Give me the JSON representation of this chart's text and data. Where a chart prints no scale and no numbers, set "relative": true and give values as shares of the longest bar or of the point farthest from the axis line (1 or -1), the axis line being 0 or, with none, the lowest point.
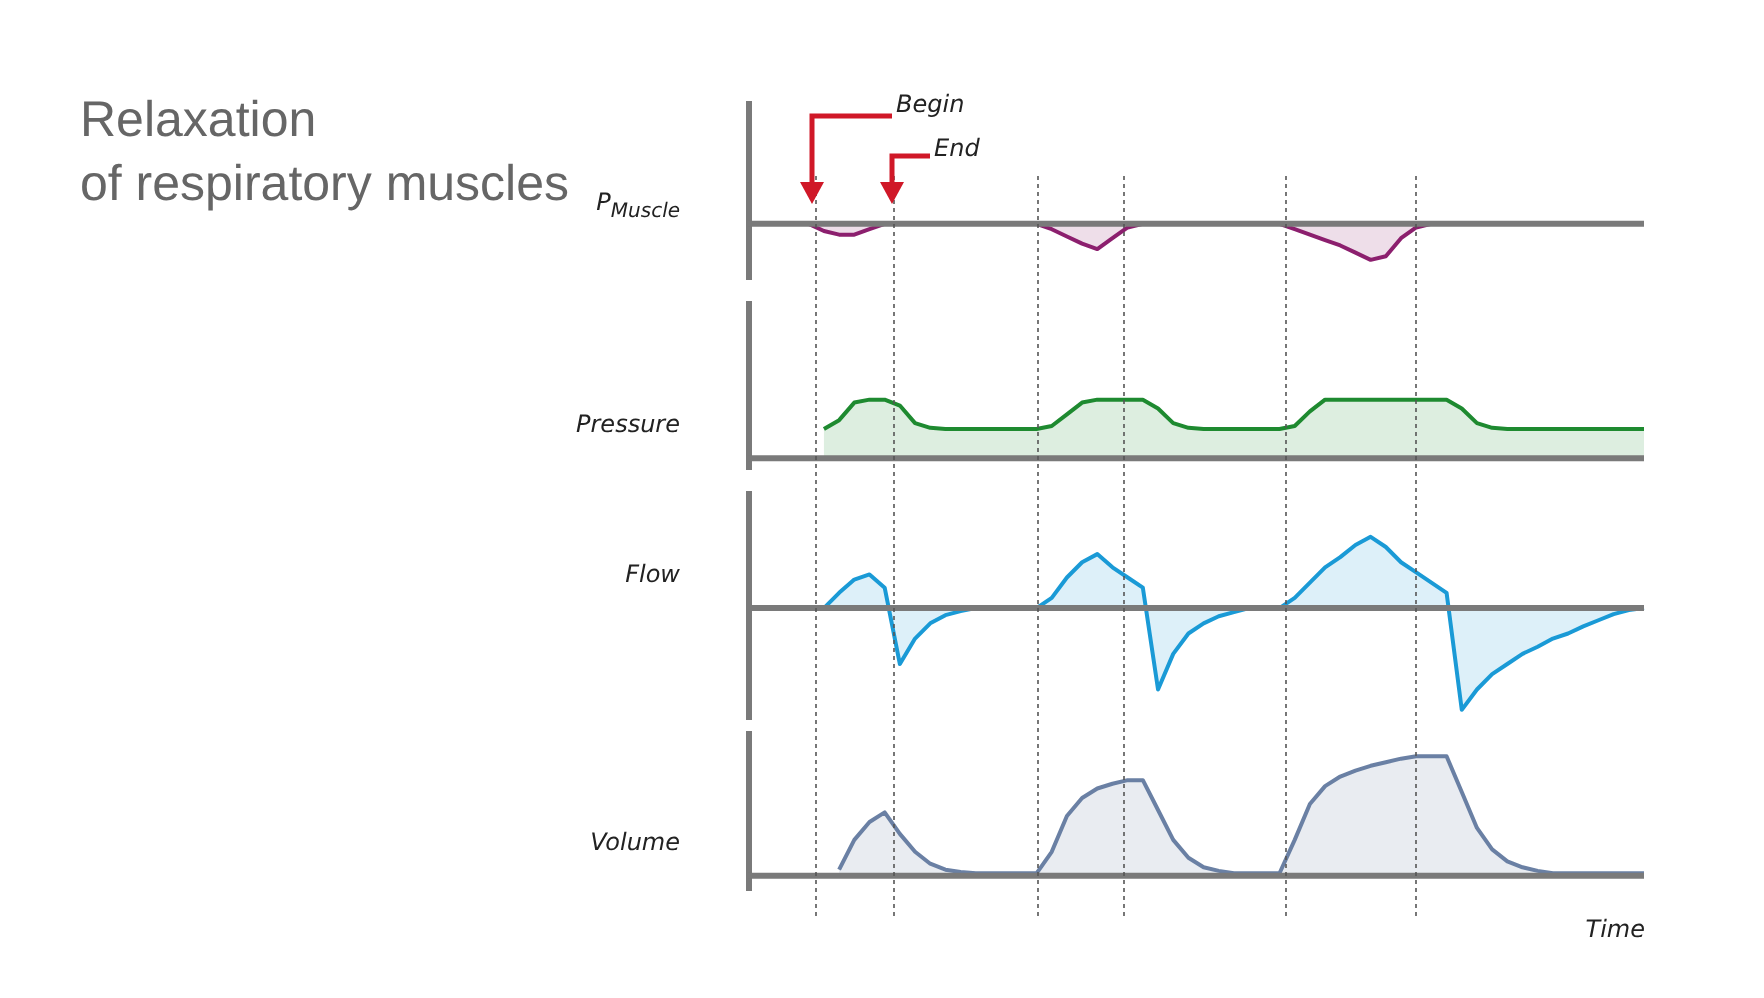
{
  "chart_data": [
    {
      "type": "area",
      "title": "Relaxation\nof respiratory muscles",
      "ylabel": "P$_{Muscle}$",
      "relative": true,
      "annotations": [
        "Begin",
        "End"
      ],
      "categories": [
        null,
        null,
        null,
        null,
        null,
        null,
        null,
        null,
        null,
        null,
        null,
        null,
        null,
        null,
        null,
        null,
        null,
        null,
        null,
        null,
        null,
        null,
        null,
        null,
        null,
        null,
        null,
        null,
        null,
        null,
        null,
        null,
        null,
        null,
        null,
        null,
        null,
        null,
        null,
        null,
        null,
        null,
        null,
        null,
        null,
        null,
        null,
        null,
        null,
        null,
        null,
        null,
        null,
        null,
        null,
        null,
        null,
        null,
        null,
        null
      ],
      "series": [
        {
          "color": "#8c1f6e",
          "values": [
            null,
            null,
            null,
            0,
            0,
            -0.2,
            -0.3,
            -0.3,
            -0.15,
            0,
            0,
            0,
            0,
            0,
            0,
            0,
            0,
            0,
            0,
            0,
            -0.15,
            -0.35,
            -0.55,
            -0.7,
            -0.4,
            -0.1,
            0,
            0,
            0,
            0,
            0,
            0,
            0,
            0,
            0,
            0,
            -0.15,
            -0.3,
            -0.45,
            -0.6,
            -0.8,
            -1,
            -0.9,
            -0.4,
            -0.1,
            0,
            0,
            0,
            0,
            0,
            0,
            0,
            0,
            0,
            0,
            0,
            0,
            0,
            0,
            0
          ]
        }
      ]
    },
    {
      "type": "area",
      "ylabel": "Pressure",
      "relative": true,
      "categories": [
        null,
        null,
        null,
        null,
        null,
        null,
        null,
        null,
        null,
        null,
        null,
        null,
        null,
        null,
        null,
        null,
        null,
        null,
        null,
        null,
        null,
        null,
        null,
        null,
        null,
        null,
        null,
        null,
        null,
        null,
        null,
        null,
        null,
        null,
        null,
        null,
        null,
        null,
        null,
        null,
        null,
        null,
        null,
        null,
        null,
        null,
        null,
        null,
        null,
        null,
        null,
        null,
        null,
        null,
        null,
        null,
        null,
        null,
        null,
        null
      ],
      "series": [
        {
          "color": "#1e8a30",
          "values": [
            null,
            null,
            null,
            null,
            null,
            0.5,
            0.65,
            0.95,
            1,
            1,
            0.9,
            0.6,
            0.52,
            0.5,
            0.5,
            0.5,
            0.5,
            0.5,
            0.5,
            0.5,
            0.55,
            0.75,
            0.95,
            1,
            1,
            1,
            1,
            0.85,
            0.6,
            0.52,
            0.5,
            0.5,
            0.5,
            0.5,
            0.5,
            0.5,
            0.55,
            0.8,
            1,
            1,
            1,
            1,
            1,
            1,
            1,
            1,
            1,
            0.85,
            0.6,
            0.52,
            0.5,
            0.5,
            0.5,
            0.5,
            0.5,
            0.5,
            0.5,
            0.5,
            0.5,
            0.5
          ]
        }
      ]
    },
    {
      "type": "area",
      "ylabel": "Flow",
      "relative": true,
      "categories": [
        null,
        null,
        null,
        null,
        null,
        null,
        null,
        null,
        null,
        null,
        null,
        null,
        null,
        null,
        null,
        null,
        null,
        null,
        null,
        null,
        null,
        null,
        null,
        null,
        null,
        null,
        null,
        null,
        null,
        null,
        null,
        null,
        null,
        null,
        null,
        null,
        null,
        null,
        null,
        null,
        null,
        null,
        null,
        null,
        null,
        null,
        null,
        null,
        null,
        null,
        null,
        null,
        null,
        null,
        null,
        null,
        null,
        null,
        null,
        null
      ],
      "series": [
        {
          "color": "#1a9ad6",
          "values": [
            null,
            null,
            null,
            null,
            null,
            0,
            0.15,
            0.28,
            0.33,
            0.2,
            -0.55,
            -0.3,
            -0.15,
            -0.07,
            -0.03,
            0,
            0,
            0,
            0,
            0,
            0.1,
            0.3,
            0.45,
            0.53,
            0.4,
            0.3,
            0.2,
            -0.8,
            -0.45,
            -0.25,
            -0.15,
            -0.08,
            -0.04,
            0,
            0,
            0,
            0.1,
            0.25,
            0.4,
            0.5,
            0.62,
            0.7,
            0.6,
            0.45,
            0.35,
            0.25,
            0.15,
            -1,
            -0.8,
            -0.65,
            -0.55,
            -0.45,
            -0.38,
            -0.3,
            -0.25,
            -0.18,
            -0.12,
            -0.06,
            -0.02,
            0
          ]
        }
      ]
    },
    {
      "type": "area",
      "ylabel": "Volume",
      "xlabel": "Time",
      "relative": true,
      "categories": [
        null,
        null,
        null,
        null,
        null,
        null,
        null,
        null,
        null,
        null,
        null,
        null,
        null,
        null,
        null,
        null,
        null,
        null,
        null,
        null,
        null,
        null,
        null,
        null,
        null,
        null,
        null,
        null,
        null,
        null,
        null,
        null,
        null,
        null,
        null,
        null,
        null,
        null,
        null,
        null,
        null,
        null,
        null,
        null,
        null,
        null,
        null,
        null,
        null,
        null,
        null,
        null,
        null,
        null,
        null,
        null,
        null,
        null,
        null,
        null
      ],
      "series": [
        {
          "color": "#6a80a4",
          "values": [
            null,
            null,
            null,
            null,
            null,
            null,
            0.05,
            0.3,
            0.45,
            0.53,
            0.35,
            0.2,
            0.1,
            0.05,
            0.03,
            0.02,
            0.02,
            0.02,
            0.02,
            0.02,
            0.2,
            0.5,
            0.65,
            0.73,
            0.77,
            0.8,
            0.8,
            0.55,
            0.3,
            0.15,
            0.07,
            0.04,
            0.02,
            0.02,
            0.02,
            0.02,
            0.3,
            0.6,
            0.75,
            0.83,
            0.88,
            0.92,
            0.95,
            0.98,
            1,
            1,
            1,
            0.7,
            0.4,
            0.22,
            0.12,
            0.07,
            0.04,
            0.02,
            0.02,
            0.02,
            0.02,
            0.02,
            0.02,
            0.02
          ]
        }
      ]
    }
  ]
}
